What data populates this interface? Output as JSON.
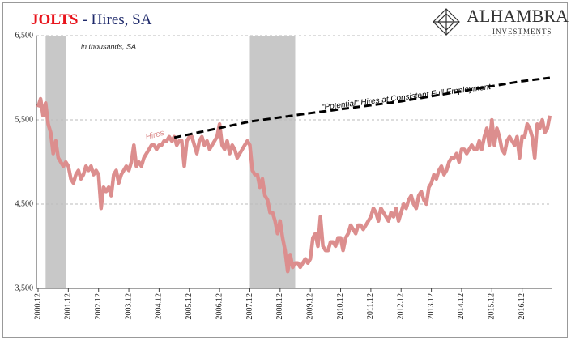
{
  "chart_data": {
    "type": "line",
    "title": "JOLTS",
    "subtitle": "- Hires, SA",
    "annotation": "in thousands, SA",
    "logo": {
      "name": "ALHAMBRA",
      "tagline": "INVESTMENTS"
    },
    "categories": [
      "2000.12",
      null,
      null,
      null,
      null,
      null,
      null,
      null,
      null,
      null,
      null,
      null,
      "2001.12",
      null,
      null,
      null,
      null,
      null,
      null,
      null,
      null,
      null,
      null,
      null,
      "2002.12",
      null,
      null,
      null,
      null,
      null,
      null,
      null,
      null,
      null,
      null,
      null,
      "2003.12",
      null,
      null,
      null,
      null,
      null,
      null,
      null,
      null,
      null,
      null,
      null,
      "2004.12",
      null,
      null,
      null,
      null,
      null,
      null,
      null,
      null,
      null,
      null,
      null,
      "2005.12",
      null,
      null,
      null,
      null,
      null,
      null,
      null,
      null,
      null,
      null,
      null,
      "2006.12",
      null,
      null,
      null,
      null,
      null,
      null,
      null,
      null,
      null,
      null,
      null,
      "2007.12",
      null,
      null,
      null,
      null,
      null,
      null,
      null,
      null,
      null,
      null,
      null,
      "2008.12",
      null,
      null,
      null,
      null,
      null,
      null,
      null,
      null,
      null,
      null,
      null,
      "2009.12",
      null,
      null,
      null,
      null,
      null,
      null,
      null,
      null,
      null,
      null,
      null,
      "2010.12",
      null,
      null,
      null,
      null,
      null,
      null,
      null,
      null,
      null,
      null,
      null,
      "2011.12",
      null,
      null,
      null,
      null,
      null,
      null,
      null,
      null,
      null,
      null,
      null,
      "2012.12",
      null,
      null,
      null,
      null,
      null,
      null,
      null,
      null,
      null,
      null,
      null,
      "2013.12",
      null,
      null,
      null,
      null,
      null,
      null,
      null,
      null,
      null,
      null,
      null,
      "2014.12",
      null,
      null,
      null,
      null,
      null,
      null,
      null,
      null,
      null,
      null,
      null,
      "2015.12",
      null,
      null,
      null,
      null,
      null,
      null,
      null,
      null,
      null,
      null,
      null,
      "2016.12",
      null,
      null,
      null,
      null,
      null,
      null,
      null,
      null,
      null,
      null,
      null
    ],
    "series": [
      {
        "name": "Hires",
        "color": "#dc8e8e",
        "values": [
          5650,
          5750,
          5550,
          5700,
          5450,
          5350,
          5100,
          5250,
          5050,
          5000,
          4950,
          5000,
          4950,
          4800,
          4750,
          4850,
          4900,
          4800,
          4850,
          4950,
          4900,
          4950,
          4850,
          4900,
          4850,
          4450,
          4700,
          4650,
          4700,
          4600,
          4850,
          4900,
          4750,
          4850,
          4900,
          4950,
          4900,
          5000,
          5200,
          4950,
          5000,
          4950,
          5050,
          5100,
          5150,
          5200,
          5200,
          5150,
          5200,
          5200,
          5250,
          5250,
          5300,
          5250,
          5300,
          5200,
          5250,
          5250,
          4950,
          5250,
          5300,
          5300,
          5200,
          5100,
          5250,
          5300,
          5200,
          5250,
          5150,
          5200,
          5250,
          5300,
          5450,
          5200,
          5150,
          5250,
          5100,
          5200,
          5150,
          5050,
          5100,
          5150,
          5200,
          5250,
          5200,
          4900,
          4850,
          4850,
          4700,
          4800,
          4600,
          4550,
          4400,
          4400,
          4300,
          4150,
          4300,
          4100,
          3950,
          3700,
          3900,
          3750,
          3800,
          3800,
          3750,
          3800,
          3850,
          3800,
          3850,
          4100,
          4150,
          4000,
          4350,
          4000,
          3950,
          3950,
          4050,
          4050,
          4000,
          4100,
          4100,
          3950,
          4100,
          4150,
          4250,
          4200,
          4150,
          4250,
          4250,
          4200,
          4250,
          4300,
          4350,
          4450,
          4400,
          4300,
          4450,
          4400,
          4350,
          4300,
          4400,
          4350,
          4450,
          4300,
          4400,
          4500,
          4450,
          4550,
          4600,
          4500,
          4450,
          4600,
          4650,
          4550,
          4500,
          4700,
          4750,
          4850,
          4800,
          4900,
          4950,
          4850,
          4900,
          5000,
          5050,
          5050,
          5100,
          5000,
          5150,
          5150,
          5100,
          5150,
          5200,
          5150,
          5150,
          5250,
          5150,
          5300,
          5400,
          5200,
          5500,
          5200,
          5400,
          5300,
          5150,
          5100,
          5250,
          5300,
          5250,
          5200,
          5300,
          5050,
          5300,
          5300,
          5450,
          5400,
          5300,
          5050,
          5450,
          5400,
          5500,
          5350,
          5400,
          5550
        ]
      },
      {
        "name": "\"Potential\" Hires at Consistent Full Employment",
        "color": "#000000",
        "dashed": true,
        "x": [
          54,
          84,
          108,
          144,
          168,
          192,
          203
        ],
        "values": [
          5290,
          5480,
          5580,
          5720,
          5840,
          5960,
          6000
        ]
      }
    ],
    "shaded": [
      {
        "start": 3,
        "end": 11
      },
      {
        "start": 84,
        "end": 102
      }
    ],
    "shade_color": "#c8c8c8",
    "ylim": [
      3500,
      6500
    ],
    "yticks": [
      {
        "value": 3500,
        "label": "3,500"
      },
      {
        "value": 4500,
        "label": "4,500"
      },
      {
        "value": 5500,
        "label": "5,500"
      },
      {
        "value": 6500,
        "label": "6,500"
      }
    ],
    "grid": true
  }
}
